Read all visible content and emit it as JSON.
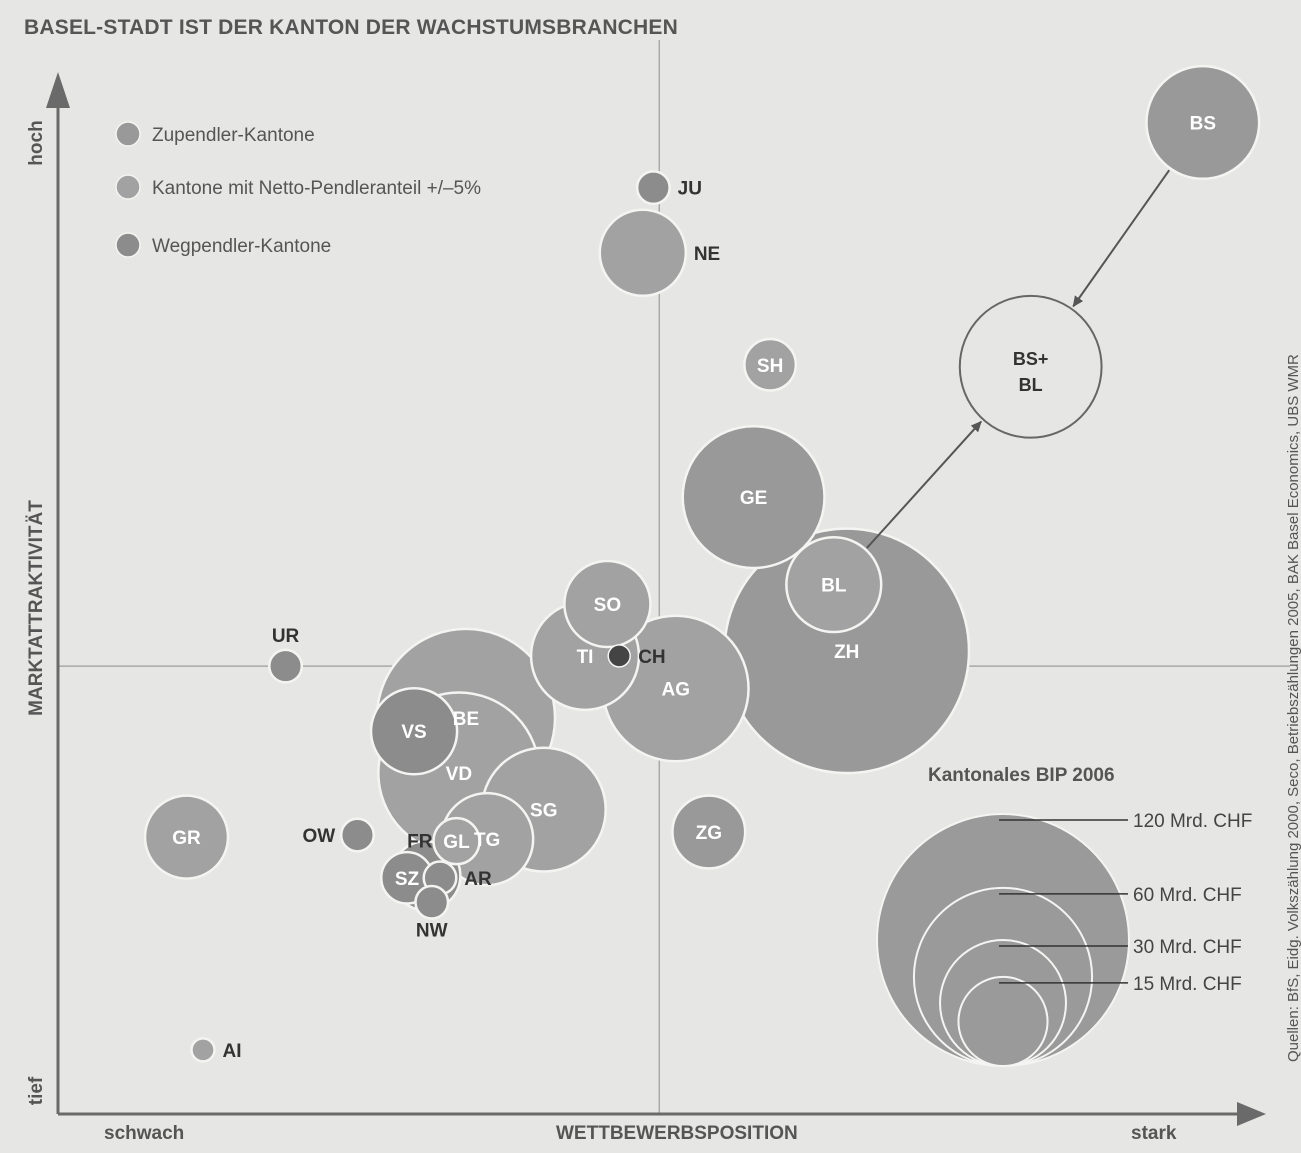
{
  "chart_data": {
    "type": "bubble",
    "title": "BASEL-STADT IST DER KANTON DER WACHSTUMSBRANCHEN",
    "source": "Quellen: BfS, Eidg. Volkszählung 2000, Seco, Betriebszählungen 2005, BAK Basel Economics, UBS WMR",
    "xlabel": "WETTBEWERBSPOSITION",
    "ylabel": "MARKTATTRAKTIVITÄT",
    "x_low": "schwach",
    "x_high": "stark",
    "y_low": "tief",
    "y_high": "hoch",
    "xlim": [
      0,
      100
    ],
    "ylim": [
      0,
      100
    ],
    "midlines": {
      "x": 51,
      "y": 44
    },
    "colors": {
      "background": "#e6e6e4",
      "zupendler": "#999999",
      "netto": "#a2a2a2",
      "wegpendler": "#8c8c8c",
      "ch": "#444444",
      "axis": "#6a6a6a"
    },
    "legend": [
      {
        "key": "zupendler",
        "label": "Zupendler-Kantone"
      },
      {
        "key": "netto",
        "label": "Kantone mit Netto-Pendleranteil +/–5%"
      },
      {
        "key": "wegpendler",
        "label": "Wegpendler-Kantone"
      }
    ],
    "size_legend": {
      "title": "Kantonales BIP 2006",
      "items": [
        {
          "label": "120 Mrd. CHF",
          "value": 120
        },
        {
          "label": "60 Mrd. CHF",
          "value": 60
        },
        {
          "label": "30 Mrd. CHF",
          "value": 30
        },
        {
          "label": "15 Mrd. CHF",
          "value": 15
        }
      ]
    },
    "arrow": {
      "from": "BL",
      "to": "BS+BL",
      "label": "BS+ BL",
      "target": {
        "x": 82.5,
        "y": 73.4,
        "bip": 38
      }
    },
    "arrow2": {
      "from": "BS",
      "to": "BS+BL"
    },
    "cantons": [
      {
        "label": "BS",
        "x": 97.1,
        "y": 97.4,
        "bip": 24,
        "group": "zupendler",
        "label_pos": "inside"
      },
      {
        "label": "JU",
        "x": 50.5,
        "y": 91.0,
        "bip": 2,
        "group": "wegpendler",
        "label_pos": "right"
      },
      {
        "label": "NE",
        "x": 49.6,
        "y": 84.6,
        "bip": 14,
        "group": "netto",
        "label_pos": "right"
      },
      {
        "label": "SH",
        "x": 60.4,
        "y": 73.6,
        "bip": 5,
        "group": "netto",
        "label_pos": "inside"
      },
      {
        "label": "GE",
        "x": 59.0,
        "y": 60.6,
        "bip": 38,
        "group": "zupendler",
        "label_pos": "inside"
      },
      {
        "label": "ZH",
        "x": 66.9,
        "y": 45.5,
        "bip": 113,
        "group": "zupendler",
        "label_pos": "inside"
      },
      {
        "label": "BL",
        "x": 65.8,
        "y": 52.0,
        "bip": 17,
        "group": "netto",
        "label_pos": "inside"
      },
      {
        "label": "SO",
        "x": 46.6,
        "y": 50.1,
        "bip": 14,
        "group": "netto",
        "label_pos": "inside"
      },
      {
        "label": "TI",
        "x": 44.7,
        "y": 45.0,
        "bip": 22,
        "group": "netto",
        "label_pos": "inside"
      },
      {
        "label": "CH",
        "x": 47.6,
        "y": 45.0,
        "bip": 0.3,
        "group": "ch",
        "label_pos": "right"
      },
      {
        "label": "AG",
        "x": 52.4,
        "y": 41.8,
        "bip": 40,
        "group": "netto",
        "label_pos": "inside"
      },
      {
        "label": "BE",
        "x": 34.6,
        "y": 38.9,
        "bip": 60,
        "group": "netto",
        "label_pos": "inside"
      },
      {
        "label": "VS",
        "x": 30.2,
        "y": 37.6,
        "bip": 14,
        "group": "wegpendler",
        "label_pos": "inside"
      },
      {
        "label": "VD",
        "x": 34.0,
        "y": 33.5,
        "bip": 49,
        "group": "netto",
        "label_pos": "inside"
      },
      {
        "label": "SG",
        "x": 41.2,
        "y": 29.9,
        "bip": 29,
        "group": "netto",
        "label_pos": "inside"
      },
      {
        "label": "ZG",
        "x": 55.2,
        "y": 27.7,
        "bip": 10,
        "group": "zupendler",
        "label_pos": "inside"
      },
      {
        "label": "UR",
        "x": 19.3,
        "y": 44.0,
        "bip": 2,
        "group": "wegpendler",
        "label_pos": "above"
      },
      {
        "label": "GR",
        "x": 10.9,
        "y": 27.2,
        "bip": 13,
        "group": "netto",
        "label_pos": "inside"
      },
      {
        "label": "OW",
        "x": 25.4,
        "y": 27.4,
        "bip": 2,
        "group": "wegpendler",
        "label_pos": "left"
      },
      {
        "label": "FR",
        "x": 31.2,
        "y": 23.4,
        "bip": 9,
        "group": "wegpendler",
        "label_pos": "above-left"
      },
      {
        "label": "GL",
        "x": 33.8,
        "y": 26.8,
        "bip": 4,
        "group": "netto",
        "label_pos": "inside"
      },
      {
        "label": "TG",
        "x": 36.4,
        "y": 27.0,
        "bip": 16,
        "group": "netto",
        "label_pos": "inside"
      },
      {
        "label": "SZ",
        "x": 29.6,
        "y": 23.2,
        "bip": 5,
        "group": "wegpendler",
        "label_pos": "inside"
      },
      {
        "label": "AR",
        "x": 32.4,
        "y": 23.2,
        "bip": 2,
        "group": "wegpendler",
        "label_pos": "right"
      },
      {
        "label": "NW",
        "x": 31.7,
        "y": 20.8,
        "bip": 2,
        "group": "wegpendler",
        "label_pos": "below"
      },
      {
        "label": "AI",
        "x": 12.3,
        "y": 6.3,
        "bip": 1,
        "group": "netto",
        "label_pos": "right"
      }
    ]
  }
}
